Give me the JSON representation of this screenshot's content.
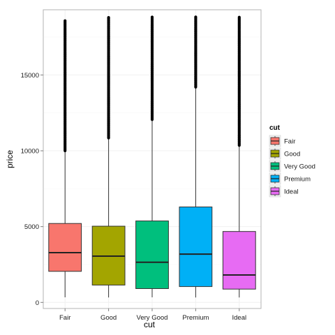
{
  "chart_data": {
    "type": "boxplot",
    "xlabel": "cut",
    "ylabel": "price",
    "ylim": [
      -400,
      19300
    ],
    "yticks": [
      0,
      5000,
      10000,
      15000
    ],
    "categories": [
      "Fair",
      "Good",
      "Very Good",
      "Premium",
      "Ideal"
    ],
    "colors": [
      "#F8766D",
      "#A3A500",
      "#00BF7D",
      "#00B0F6",
      "#E76BF3"
    ],
    "boxes": [
      {
        "category": "Fair",
        "whisker_low": 337,
        "q1": 2050,
        "median": 3282,
        "q3": 5206,
        "whisker_high": 9950,
        "outlier_min": 10000,
        "outlier_max": 18574
      },
      {
        "category": "Good",
        "whisker_low": 327,
        "q1": 1145,
        "median": 3050,
        "q3": 5028,
        "whisker_high": 10800,
        "outlier_min": 10850,
        "outlier_max": 18788
      },
      {
        "category": "Very Good",
        "whisker_low": 336,
        "q1": 912,
        "median": 2648,
        "q3": 5373,
        "whisker_high": 12000,
        "outlier_min": 12060,
        "outlier_max": 18818
      },
      {
        "category": "Premium",
        "whisker_low": 326,
        "q1": 1046,
        "median": 3185,
        "q3": 6296,
        "whisker_high": 14160,
        "outlier_min": 14200,
        "outlier_max": 18823
      },
      {
        "category": "Ideal",
        "whisker_low": 326,
        "q1": 878,
        "median": 1810,
        "q3": 4678,
        "whisker_high": 10330,
        "outlier_min": 10360,
        "outlier_max": 18806
      }
    ],
    "legend": {
      "title": "cut",
      "position": "right",
      "entries": [
        "Fair",
        "Good",
        "Very Good",
        "Premium",
        "Ideal"
      ]
    },
    "grid": true,
    "panel_background": "#ffffff",
    "panel_border_color": "#b3b3b3",
    "grid_color": "#f0f0f0"
  }
}
